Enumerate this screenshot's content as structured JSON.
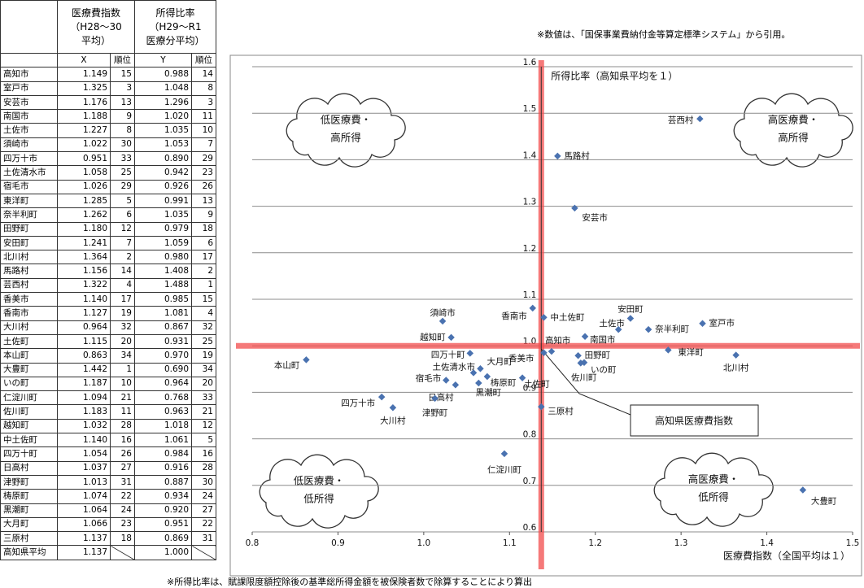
{
  "note_top": "※数値は、「国保事業費納付金等算定標準システム」から引用。",
  "note_bottom": "※所得比率は、賦課限度額控除後の基準総所得金額を被保険者数で除算することにより算出",
  "table": {
    "headers": [
      [
        "医療費指数",
        "（H28～30",
        "平均）"
      ],
      [
        "所得比率",
        "（H29～R1",
        "医療分平均）"
      ]
    ],
    "subheaders": [
      "X",
      "順位",
      "Y",
      "順位"
    ],
    "rows": [
      [
        "高知市",
        "1.149",
        "15",
        "0.988",
        "14"
      ],
      [
        "室戸市",
        "1.325",
        "3",
        "1.048",
        "8"
      ],
      [
        "安芸市",
        "1.176",
        "13",
        "1.296",
        "3"
      ],
      [
        "南国市",
        "1.188",
        "9",
        "1.020",
        "11"
      ],
      [
        "土佐市",
        "1.227",
        "8",
        "1.035",
        "10"
      ],
      [
        "須崎市",
        "1.022",
        "30",
        "1.053",
        "7"
      ],
      [
        "四万十市",
        "0.951",
        "33",
        "0.890",
        "29"
      ],
      [
        "土佐清水市",
        "1.058",
        "25",
        "0.942",
        "23"
      ],
      [
        "宿毛市",
        "1.026",
        "29",
        "0.926",
        "26"
      ],
      [
        "東洋町",
        "1.285",
        "5",
        "0.991",
        "13"
      ],
      [
        "奈半利町",
        "1.262",
        "6",
        "1.035",
        "9"
      ],
      [
        "田野町",
        "1.180",
        "12",
        "0.979",
        "18"
      ],
      [
        "安田町",
        "1.241",
        "7",
        "1.059",
        "6"
      ],
      [
        "北川村",
        "1.364",
        "2",
        "0.980",
        "17"
      ],
      [
        "馬路村",
        "1.156",
        "14",
        "1.408",
        "2"
      ],
      [
        "芸西村",
        "1.322",
        "4",
        "1.488",
        "1"
      ],
      [
        "香美市",
        "1.140",
        "17",
        "0.985",
        "15"
      ],
      [
        "香南市",
        "1.127",
        "19",
        "1.081",
        "4"
      ],
      [
        "大川村",
        "0.964",
        "32",
        "0.867",
        "32"
      ],
      [
        "土佐町",
        "1.115",
        "20",
        "0.931",
        "25"
      ],
      [
        "本山町",
        "0.863",
        "34",
        "0.970",
        "19"
      ],
      [
        "大豊町",
        "1.442",
        "1",
        "0.690",
        "34"
      ],
      [
        "いの町",
        "1.187",
        "10",
        "0.964",
        "20"
      ],
      [
        "仁淀川町",
        "1.094",
        "21",
        "0.768",
        "33"
      ],
      [
        "佐川町",
        "1.183",
        "11",
        "0.963",
        "21"
      ],
      [
        "越知町",
        "1.032",
        "28",
        "1.018",
        "12"
      ],
      [
        "中土佐町",
        "1.140",
        "16",
        "1.061",
        "5"
      ],
      [
        "四万十町",
        "1.054",
        "26",
        "0.984",
        "16"
      ],
      [
        "日高村",
        "1.037",
        "27",
        "0.916",
        "28"
      ],
      [
        "津野町",
        "1.013",
        "31",
        "0.887",
        "30"
      ],
      [
        "梼原町",
        "1.074",
        "22",
        "0.934",
        "24"
      ],
      [
        "黒潮町",
        "1.064",
        "24",
        "0.920",
        "27"
      ],
      [
        "大月町",
        "1.066",
        "23",
        "0.951",
        "22"
      ],
      [
        "三原村",
        "1.137",
        "18",
        "0.869",
        "31"
      ]
    ],
    "average": [
      "高知県平均",
      "1.137",
      "1.000"
    ]
  },
  "chart_data": {
    "type": "scatter",
    "x_label": "医療費指数（全国平均は１）",
    "y_label": "所得比率（高知県平均を１）",
    "categories": [
      "高知市",
      "室戸市",
      "安芸市",
      "南国市",
      "土佐市",
      "須崎市",
      "四万十市",
      "土佐清水市",
      "宿毛市",
      "東洋町",
      "奈半利町",
      "田野町",
      "安田町",
      "北川村",
      "馬路村",
      "芸西村",
      "香美市",
      "香南市",
      "大川村",
      "土佐町",
      "本山町",
      "大豊町",
      "いの町",
      "仁淀川町",
      "佐川町",
      "越知町",
      "中土佐町",
      "四万十町",
      "日高村",
      "津野町",
      "梼原町",
      "黒潮町",
      "大月町",
      "三原村"
    ],
    "x": [
      1.149,
      1.325,
      1.176,
      1.188,
      1.227,
      1.022,
      0.951,
      1.058,
      1.026,
      1.285,
      1.262,
      1.18,
      1.241,
      1.364,
      1.156,
      1.322,
      1.14,
      1.127,
      0.964,
      1.115,
      0.863,
      1.442,
      1.187,
      1.094,
      1.183,
      1.032,
      1.14,
      1.054,
      1.037,
      1.013,
      1.074,
      1.064,
      1.066,
      1.137
    ],
    "values": [
      0.988,
      1.048,
      1.296,
      1.02,
      1.035,
      1.053,
      0.89,
      0.942,
      0.926,
      0.991,
      1.035,
      0.979,
      1.059,
      0.98,
      1.408,
      1.488,
      0.985,
      1.081,
      0.867,
      0.931,
      0.97,
      0.69,
      0.964,
      0.768,
      0.963,
      1.018,
      1.061,
      0.984,
      0.916,
      0.887,
      0.934,
      0.92,
      0.951,
      0.869
    ],
    "color": "#4a72b0",
    "xlim": [
      0.8,
      1.5
    ],
    "xticks": [
      0.8,
      0.9,
      {
        "value": 1,
        "label": "1.0"
      },
      1.1,
      1.2,
      1.3,
      1.4,
      1.5
    ],
    "ylim": [
      0.6,
      1.6
    ],
    "yticks": [
      0.6,
      0.7,
      0.8,
      0.9,
      {
        "value": 1,
        "label": "1.0"
      },
      1.1,
      1.2,
      1.3,
      1.4,
      1.5,
      1.6
    ],
    "grid": true,
    "reference_lines": {
      "x": 1.137,
      "y": 1.0,
      "color": "#f24c4c"
    },
    "callout": "高知県医療費指数",
    "quadrant_labels": [
      [
        "低医療費・",
        "高所得"
      ],
      [
        "高医療費・",
        "高所得"
      ],
      [
        "低医療費・",
        "低所得"
      ],
      [
        "高医療費・",
        "低所得"
      ]
    ]
  }
}
